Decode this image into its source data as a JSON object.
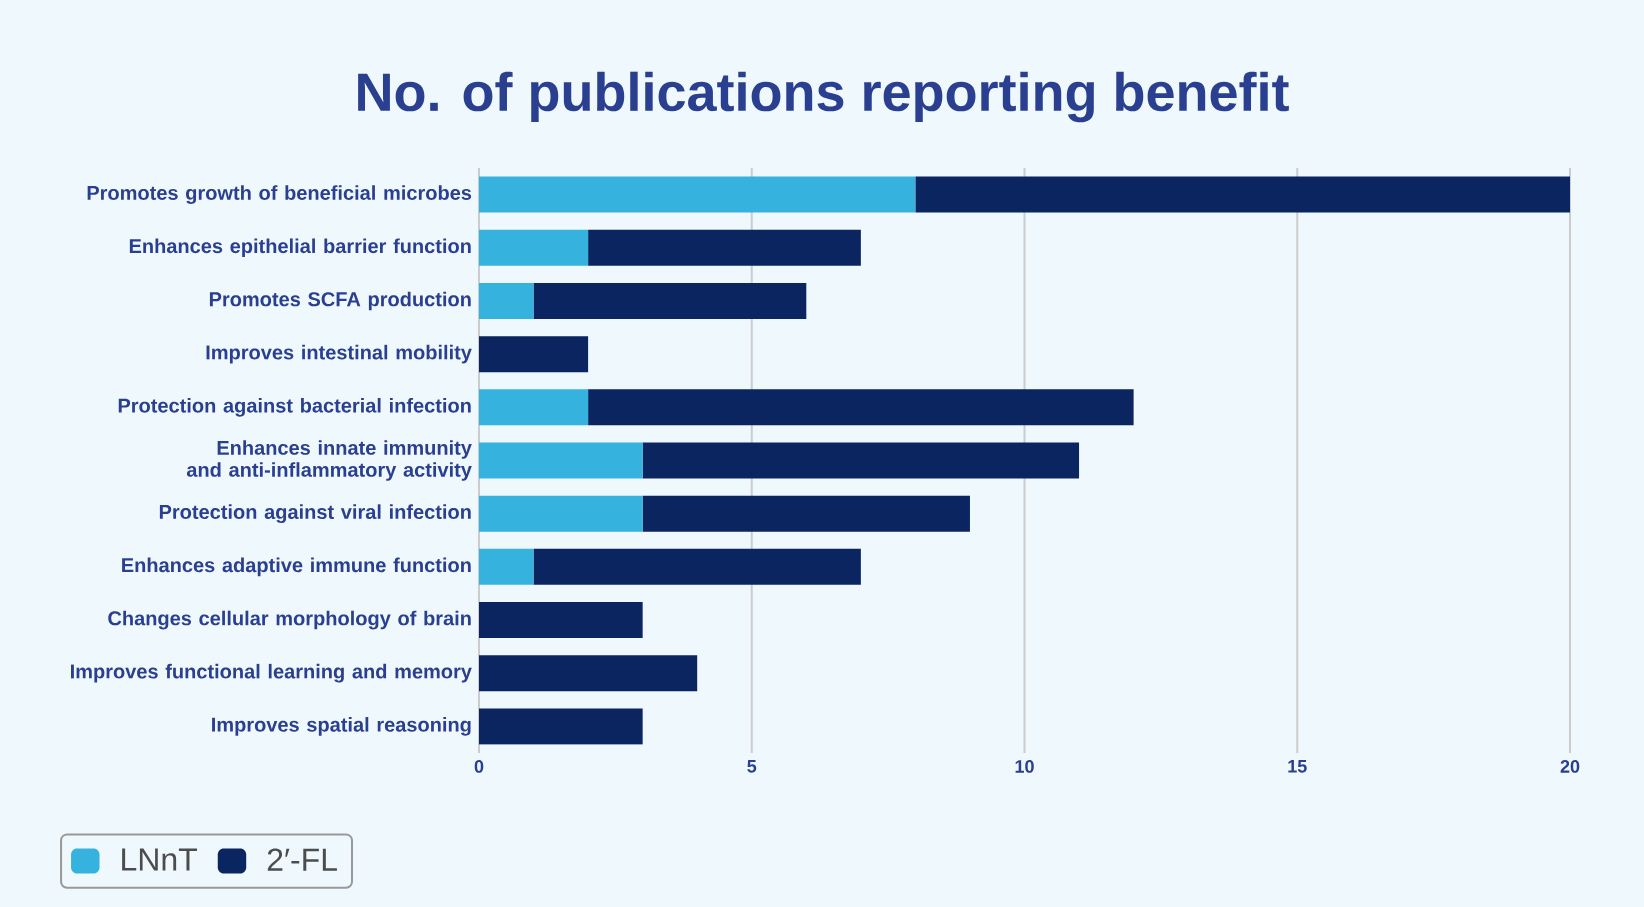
{
  "chart_data": {
    "type": "bar",
    "title": "No. of publications reporting benefit",
    "orientation": "horizontal",
    "stacked": true,
    "categories": [
      "Promotes growth of beneficial microbes",
      "Enhances epithelial barrier function",
      "Promotes SCFA production",
      "Improves intestinal mobility",
      "Protection against bacterial infection",
      "Enhances innate immunity and anti-inflammatory activity",
      "Protection against viral infection",
      "Enhances adaptive immune function",
      "Changes cellular morphology of brain",
      "Improves functional learning and memory",
      "Improves spatial reasoning"
    ],
    "series": [
      {
        "name": "LNnT",
        "color": "#36b2df",
        "values": [
          8,
          2,
          1,
          0,
          2,
          3,
          3,
          1,
          0,
          0,
          0
        ]
      },
      {
        "name": "2′-FL",
        "color": "#0a2560",
        "values": [
          12,
          5,
          5,
          2,
          10,
          8,
          6,
          6,
          3,
          4,
          3
        ]
      }
    ],
    "xlim": [
      0,
      20
    ],
    "xticks": [
      0,
      5,
      10,
      15,
      20
    ],
    "grid": "x",
    "legend": "bottom left"
  }
}
